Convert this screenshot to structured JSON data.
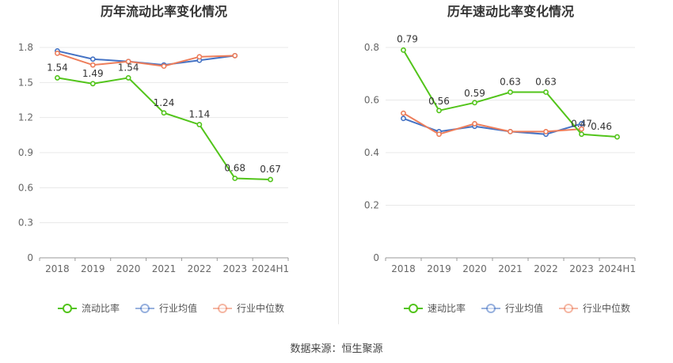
{
  "source_text": "数据来源：恒生聚源",
  "colors": {
    "main": "#52c41a",
    "industry_avg": "#4472c4",
    "industry_median": "#ed7d5a"
  },
  "chart_data": [
    {
      "type": "line",
      "title": "历年流动比率变化情况",
      "categories": [
        "2018",
        "2019",
        "2020",
        "2021",
        "2022",
        "2023",
        "2024H1"
      ],
      "yticks": [
        "0",
        "0.3",
        "0.6",
        "0.9",
        "1.2",
        "1.5",
        "1.8"
      ],
      "ylim": [
        0,
        1.8
      ],
      "grid": true,
      "legend_position": "bottom",
      "series": [
        {
          "name": "流动比率",
          "color": "#52c41a",
          "values": [
            1.54,
            1.49,
            1.54,
            1.24,
            1.14,
            0.68,
            0.67
          ],
          "labels": [
            "1.54",
            "1.49",
            "1.54",
            "1.24",
            "1.14",
            "0.68",
            "0.67"
          ]
        },
        {
          "name": "行业均值",
          "color": "#4472c4",
          "values": [
            1.77,
            1.7,
            1.68,
            1.65,
            1.69,
            1.73,
            null
          ]
        },
        {
          "name": "行业中位数",
          "color": "#ed7d5a",
          "values": [
            1.75,
            1.65,
            1.68,
            1.64,
            1.72,
            1.73,
            null
          ]
        }
      ]
    },
    {
      "type": "line",
      "title": "历年速动比率变化情况",
      "categories": [
        "2018",
        "2019",
        "2020",
        "2021",
        "2022",
        "2023",
        "2024H1"
      ],
      "yticks": [
        "0",
        "0.2",
        "0.4",
        "0.6",
        "0.8"
      ],
      "ylim": [
        0,
        0.8
      ],
      "grid": true,
      "legend_position": "bottom",
      "series": [
        {
          "name": "速动比率",
          "color": "#52c41a",
          "values": [
            0.79,
            0.56,
            0.59,
            0.63,
            0.63,
            0.47,
            0.46
          ],
          "labels": [
            "0.79",
            "0.56",
            "0.59",
            "0.63",
            "0.63",
            "0.47",
            "0.46"
          ]
        },
        {
          "name": "行业均值",
          "color": "#4472c4",
          "values": [
            0.53,
            0.48,
            0.5,
            0.48,
            0.47,
            0.51,
            null
          ]
        },
        {
          "name": "行业中位数",
          "color": "#ed7d5a",
          "values": [
            0.55,
            0.47,
            0.51,
            0.48,
            0.48,
            0.49,
            null
          ]
        }
      ]
    }
  ]
}
